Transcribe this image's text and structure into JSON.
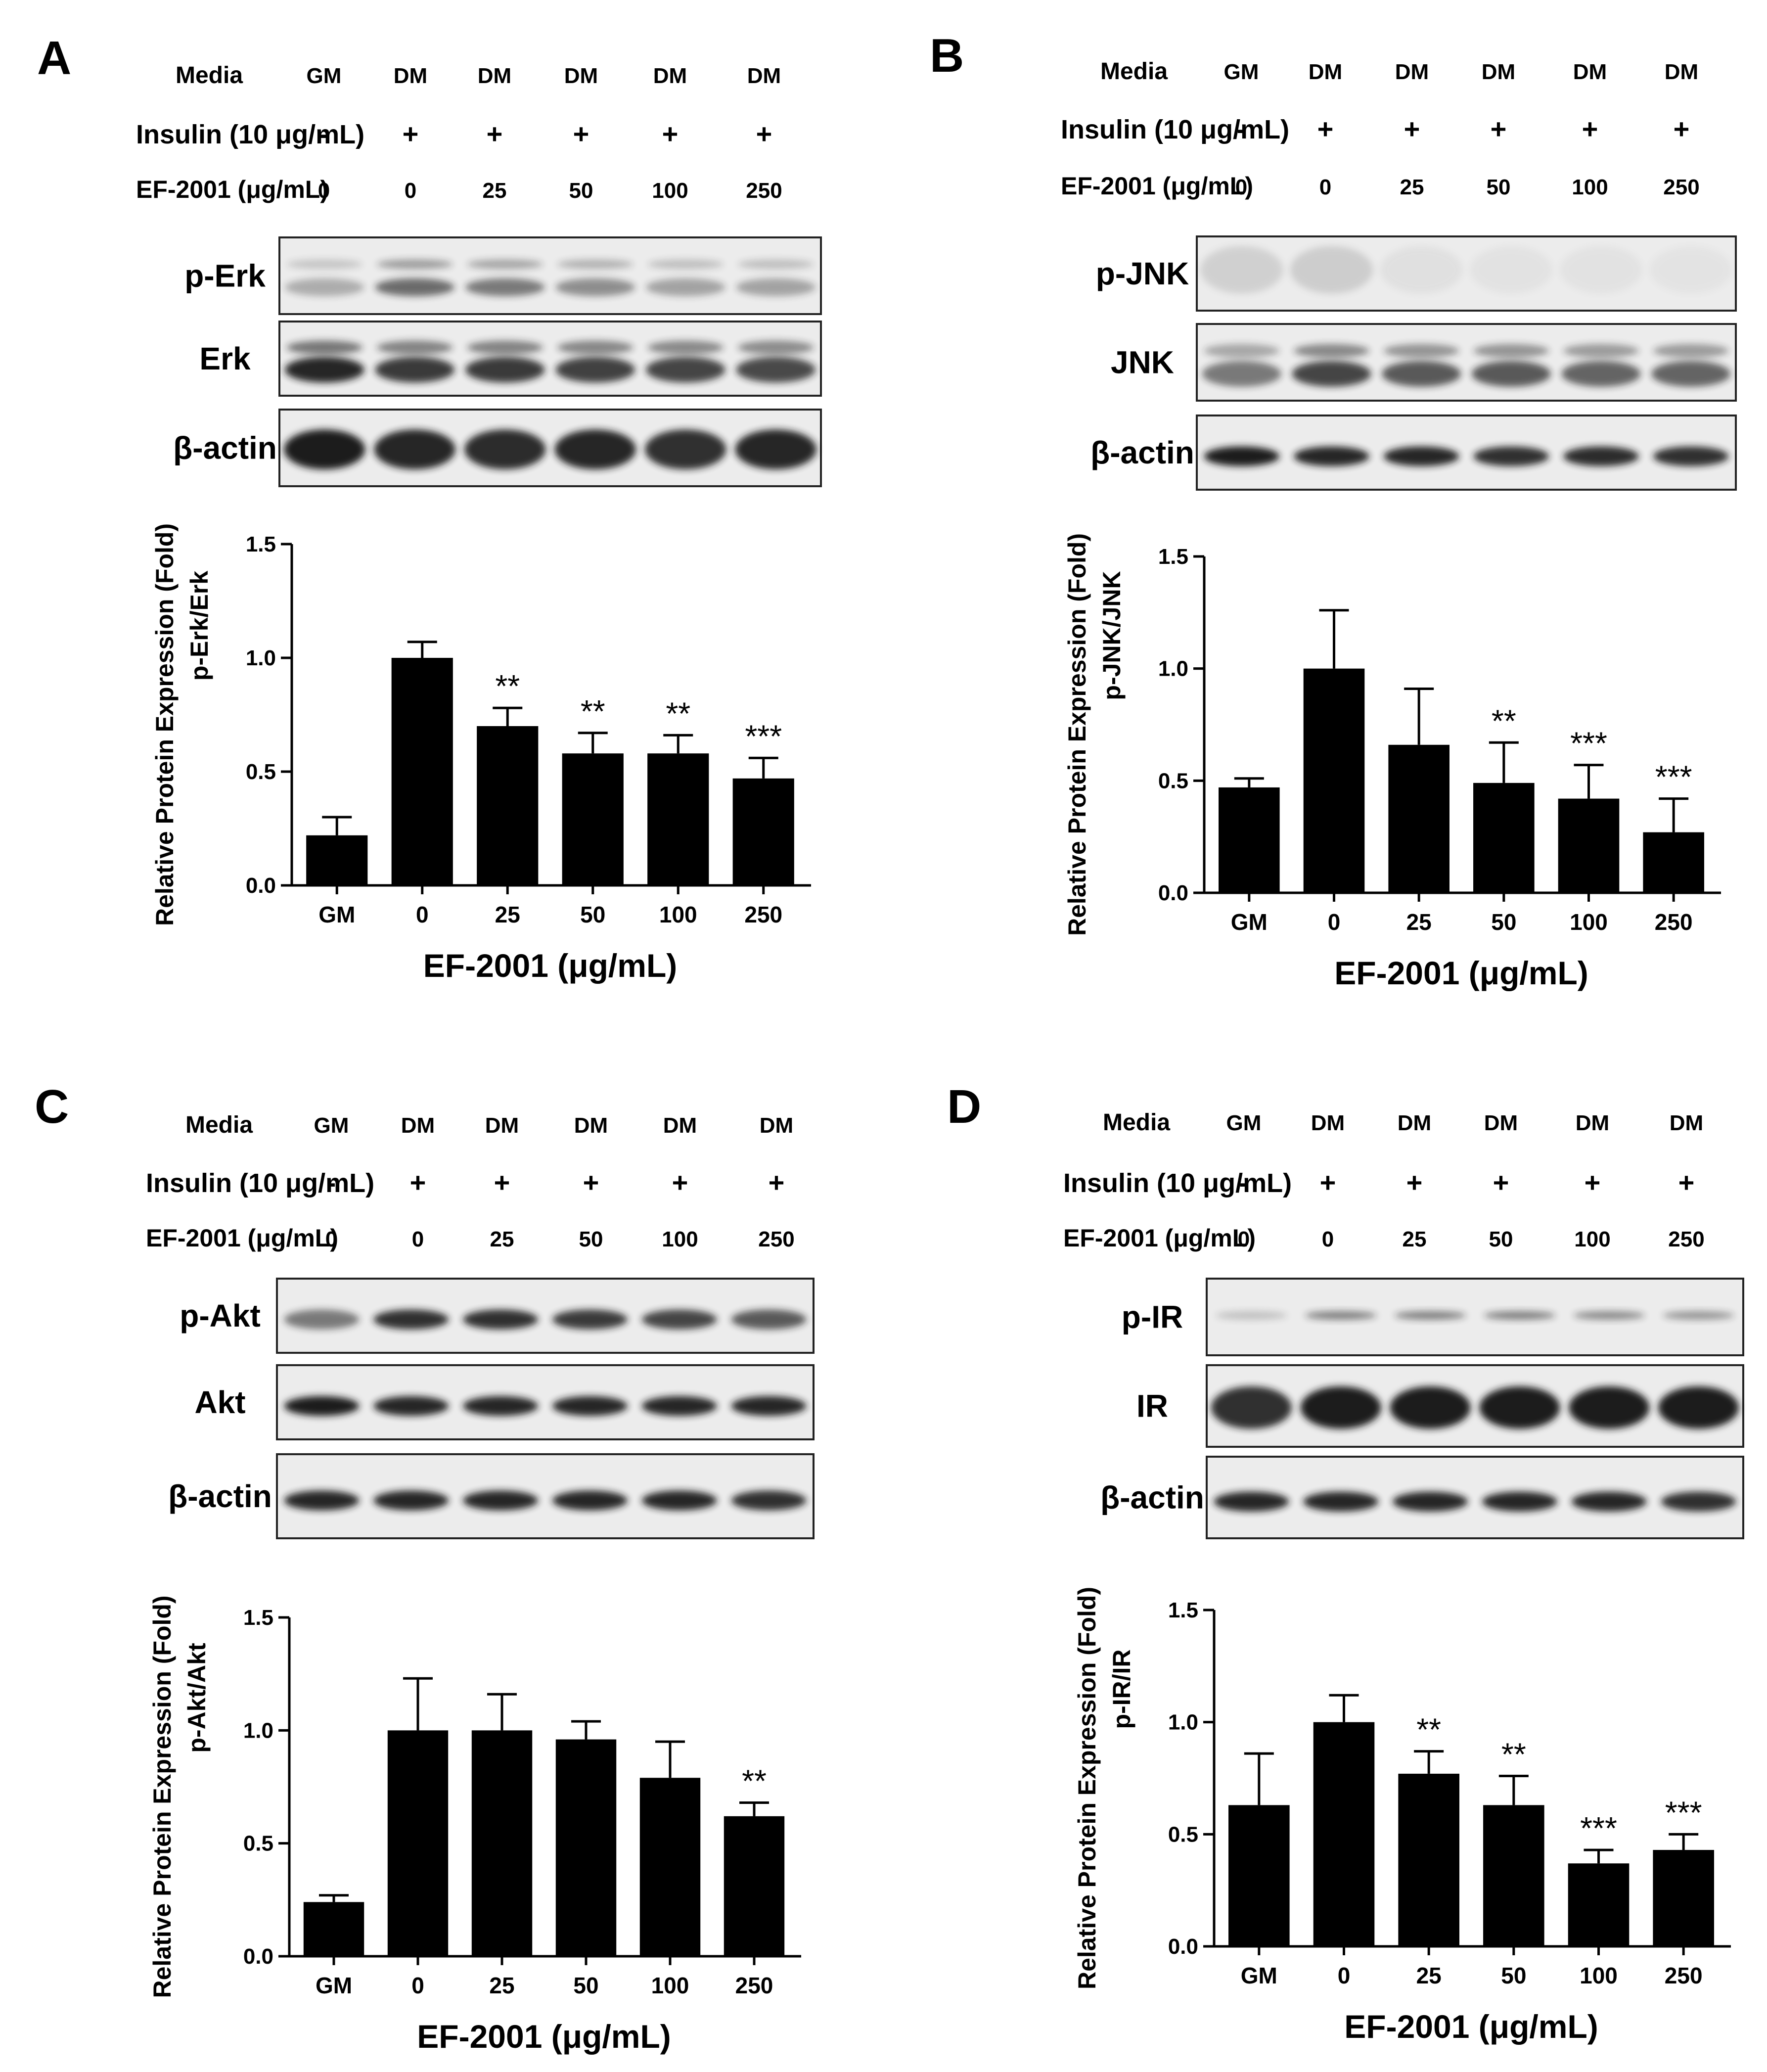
{
  "row_labels": {
    "media": "Media",
    "insulin": "Insulin (10 μg/mL)",
    "ef": "EF-2001 (μg/mL)"
  },
  "lane_values": {
    "media": [
      "GM",
      "DM",
      "DM",
      "DM",
      "DM",
      "DM"
    ],
    "insulin": [
      "-",
      "+",
      "+",
      "+",
      "+",
      "+"
    ],
    "ef": [
      "0",
      "0",
      "25",
      "50",
      "100",
      "250"
    ]
  },
  "colors": {
    "bar": "#000000",
    "blot_bg": "#ececec",
    "band": "#1a1a1a"
  },
  "panels": [
    {
      "letter": "A",
      "blots": [
        {
          "label": "p-Erk",
          "style": "doublet_faint",
          "intensity": [
            0.3,
            0.62,
            0.55,
            0.45,
            0.35,
            0.35
          ]
        },
        {
          "label": "Erk",
          "style": "doublet",
          "intensity": [
            0.95,
            0.85,
            0.85,
            0.82,
            0.8,
            0.78
          ]
        },
        {
          "label": "β-actin",
          "style": "thick",
          "intensity": [
            1.0,
            0.95,
            0.92,
            0.95,
            0.9,
            0.95
          ]
        }
      ]
    },
    {
      "letter": "B",
      "blots": [
        {
          "label": "p-JNK",
          "style": "noisy",
          "intensity": [
            0.35,
            0.4,
            0.15,
            0.12,
            0.12,
            0.1
          ]
        },
        {
          "label": "JNK",
          "style": "doublet",
          "intensity": [
            0.55,
            0.8,
            0.7,
            0.7,
            0.65,
            0.65
          ]
        },
        {
          "label": "β-actin",
          "style": "single",
          "intensity": [
            1.0,
            0.95,
            0.95,
            0.9,
            0.92,
            0.9
          ]
        }
      ]
    },
    {
      "letter": "C",
      "blots": [
        {
          "label": "p-Akt",
          "style": "single",
          "intensity": [
            0.55,
            0.9,
            0.9,
            0.85,
            0.8,
            0.7
          ]
        },
        {
          "label": "Akt",
          "style": "single",
          "intensity": [
            1.0,
            0.95,
            0.95,
            0.95,
            0.95,
            0.95
          ]
        },
        {
          "label": "β-actin",
          "style": "single",
          "intensity": [
            0.95,
            0.95,
            0.95,
            0.95,
            0.95,
            0.9
          ]
        }
      ]
    },
    {
      "letter": "D",
      "blots": [
        {
          "label": "p-IR",
          "style": "thin",
          "intensity": [
            0.2,
            0.5,
            0.5,
            0.5,
            0.45,
            0.4
          ]
        },
        {
          "label": "IR",
          "style": "thick",
          "intensity": [
            0.9,
            1.0,
            1.0,
            1.0,
            1.0,
            1.0
          ]
        },
        {
          "label": "β-actin",
          "style": "single",
          "intensity": [
            0.95,
            0.95,
            0.95,
            0.95,
            0.95,
            0.9
          ]
        }
      ]
    }
  ],
  "chart_data": [
    {
      "type": "bar",
      "panel": "A",
      "categories": [
        "GM",
        "0",
        "25",
        "50",
        "100",
        "250"
      ],
      "values": [
        0.22,
        1.0,
        0.7,
        0.58,
        0.58,
        0.47
      ],
      "errors": [
        0.08,
        0.07,
        0.08,
        0.09,
        0.08,
        0.09
      ],
      "significance": [
        "",
        "",
        "**",
        "**",
        "**",
        "***"
      ],
      "ylabel": "Relative Protein Expression (Fold)",
      "ylabel2": "p-Erk/Erk",
      "xlabel": "EF-2001 (μg/mL)",
      "ylim": [
        0,
        1.5
      ],
      "yticks": [
        "0.0",
        "0.5",
        "1.0",
        "1.5"
      ],
      "ytick_values": [
        0,
        0.5,
        1.0,
        1.5
      ]
    },
    {
      "type": "bar",
      "panel": "B",
      "categories": [
        "GM",
        "0",
        "25",
        "50",
        "100",
        "250"
      ],
      "values": [
        0.47,
        1.0,
        0.66,
        0.49,
        0.42,
        0.27
      ],
      "errors": [
        0.04,
        0.26,
        0.25,
        0.18,
        0.15,
        0.15
      ],
      "significance": [
        "",
        "",
        "",
        "**",
        "***",
        "***"
      ],
      "ylabel": "Relative Protein Expression (Fold)",
      "ylabel2": "p-JNK/JNK",
      "xlabel": "EF-2001 (μg/mL)",
      "ylim": [
        0,
        1.5
      ],
      "yticks": [
        "0.0",
        "0.5",
        "1.0",
        "1.5"
      ],
      "ytick_values": [
        0,
        0.5,
        1.0,
        1.5
      ]
    },
    {
      "type": "bar",
      "panel": "C",
      "categories": [
        "GM",
        "0",
        "25",
        "50",
        "100",
        "250"
      ],
      "values": [
        0.24,
        1.0,
        1.0,
        0.96,
        0.79,
        0.62
      ],
      "errors": [
        0.03,
        0.23,
        0.16,
        0.08,
        0.16,
        0.06
      ],
      "significance": [
        "",
        "",
        "",
        "",
        "",
        "**"
      ],
      "ylabel": "Relative Protein Expression (Fold)",
      "ylabel2": "p-Akt/Akt",
      "xlabel": "EF-2001 (μg/mL)",
      "ylim": [
        0,
        1.5
      ],
      "yticks": [
        "0.0",
        "0.5",
        "1.0",
        "1.5"
      ],
      "ytick_values": [
        0,
        0.5,
        1.0,
        1.5
      ]
    },
    {
      "type": "bar",
      "panel": "D",
      "categories": [
        "GM",
        "0",
        "25",
        "50",
        "100",
        "250"
      ],
      "values": [
        0.63,
        1.0,
        0.77,
        0.63,
        0.37,
        0.43
      ],
      "errors": [
        0.23,
        0.12,
        0.1,
        0.13,
        0.06,
        0.07
      ],
      "significance": [
        "",
        "",
        "**",
        "**",
        "***",
        "***"
      ],
      "ylabel": "Relative Protein Expression (Fold)",
      "ylabel2": "p-IR/IR",
      "xlabel": "EF-2001 (μg/mL)",
      "ylim": [
        0,
        1.5
      ],
      "yticks": [
        "0.0",
        "0.5",
        "1.0",
        "1.5"
      ],
      "ytick_values": [
        0,
        0.5,
        1.0,
        1.5
      ]
    }
  ]
}
